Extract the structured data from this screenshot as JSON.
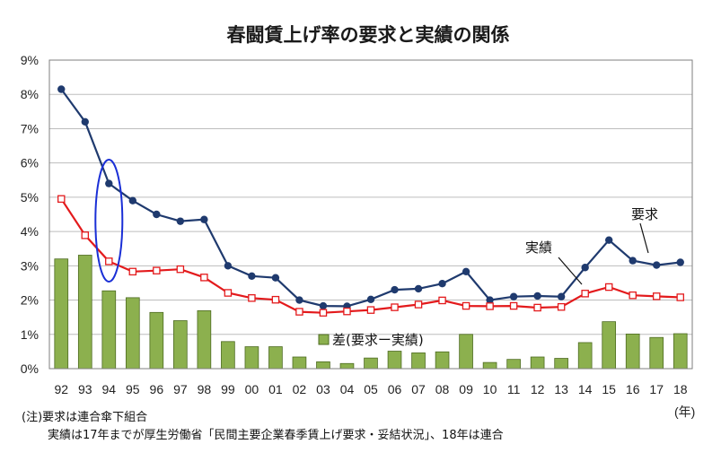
{
  "chart_data": {
    "type": "bar+line",
    "title": "春闘賃上げ率の要求と実績の関係",
    "categories": [
      "92",
      "93",
      "94",
      "95",
      "96",
      "97",
      "98",
      "99",
      "00",
      "01",
      "02",
      "03",
      "04",
      "05",
      "06",
      "07",
      "08",
      "09",
      "10",
      "11",
      "12",
      "13",
      "14",
      "15",
      "16",
      "17",
      "18"
    ],
    "x_unit": "(年)",
    "ylim": [
      0,
      9
    ],
    "y_ticks": [
      "0%",
      "1%",
      "2%",
      "3%",
      "4%",
      "5%",
      "6%",
      "7%",
      "8%",
      "9%"
    ],
    "grid": true,
    "series": [
      {
        "name": "要求",
        "type": "line",
        "color": "#1f3a6e",
        "marker": "filled-circle",
        "values": [
          8.15,
          7.2,
          5.4,
          4.9,
          4.5,
          4.3,
          4.35,
          3.0,
          2.7,
          2.65,
          2.0,
          1.83,
          1.82,
          2.02,
          2.3,
          2.33,
          2.48,
          2.83,
          2.0,
          2.1,
          2.12,
          2.1,
          2.95,
          3.75,
          3.15,
          3.02,
          3.1
        ]
      },
      {
        "name": "実績",
        "type": "line",
        "color": "#e31a1c",
        "marker": "open-square",
        "values": [
          4.95,
          3.89,
          3.13,
          2.83,
          2.86,
          2.9,
          2.66,
          2.21,
          2.06,
          2.01,
          1.66,
          1.63,
          1.67,
          1.71,
          1.79,
          1.87,
          1.99,
          1.83,
          1.82,
          1.83,
          1.78,
          1.8,
          2.19,
          2.38,
          2.14,
          2.11,
          2.08
        ]
      },
      {
        "name": "差(要求ー実績)",
        "type": "bar",
        "color": "#8cb04e",
        "values": [
          3.2,
          3.31,
          2.27,
          2.07,
          1.64,
          1.4,
          1.69,
          0.79,
          0.64,
          0.64,
          0.34,
          0.2,
          0.15,
          0.31,
          0.51,
          0.46,
          0.49,
          1.0,
          0.18,
          0.27,
          0.34,
          0.3,
          0.76,
          1.37,
          1.01,
          0.91,
          1.02
        ]
      }
    ],
    "annotations": {
      "label_yokyu": "要求",
      "label_jisseki": "実績",
      "legend_bar": "差(要求ー実績)",
      "highlight": "ellipse around 94"
    }
  },
  "notes": {
    "line1": "(注)要求は連合傘下組合",
    "line2": "実績は17年までが厚生労働省「民間主要企業春季賃上げ要求・妥結状況」、18年は連合"
  },
  "colors": {
    "bar": "#8cb04e",
    "bar_border": "#4e6b22",
    "demand_line": "#1f3a6e",
    "actual_line": "#e31a1c",
    "ellipse": "#1a2fd6",
    "grid": "#bdbdbd"
  }
}
